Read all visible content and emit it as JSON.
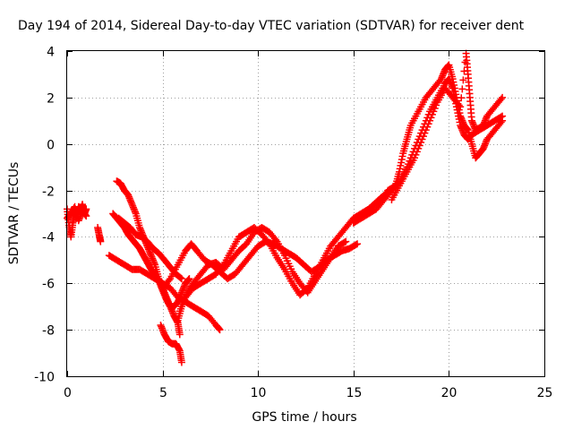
{
  "chart_data": {
    "type": "scatter",
    "title": "Day 194 of 2014, Sidereal Day-to-day VTEC variation (SDTVAR) for receiver dent",
    "xlabel": "GPS time / hours",
    "ylabel": "SDTVAR / TECUs",
    "xlim": [
      0,
      25
    ],
    "ylim": [
      -10,
      4
    ],
    "xticks": [
      0,
      5,
      10,
      15,
      20,
      25
    ],
    "yticks": [
      -10,
      -8,
      -6,
      -4,
      -2,
      0,
      2,
      4
    ],
    "grid": true,
    "marker": "+",
    "color": "#ff0000",
    "series": [
      {
        "points": [
          [
            0.0,
            -2.8
          ],
          [
            0.1,
            -3.5
          ],
          [
            0.2,
            -4.0
          ],
          [
            0.3,
            -3.4
          ],
          [
            0.4,
            -3.0
          ],
          [
            0.5,
            -3.2
          ],
          [
            0.6,
            -2.7
          ],
          [
            0.7,
            -2.9
          ],
          [
            0.8,
            -2.6
          ],
          [
            0.9,
            -3.0
          ],
          [
            1.0,
            -2.8
          ]
        ]
      },
      {
        "points": [
          [
            0.0,
            -3.2
          ],
          [
            0.2,
            -3.0
          ],
          [
            0.4,
            -2.7
          ],
          [
            0.6,
            -3.3
          ],
          [
            0.8,
            -2.9
          ],
          [
            1.0,
            -3.1
          ]
        ]
      },
      {
        "points": [
          [
            1.6,
            -3.6
          ],
          [
            1.7,
            -4.0
          ],
          [
            1.75,
            -4.2
          ]
        ]
      },
      {
        "points": [
          [
            2.6,
            -1.6
          ],
          [
            2.8,
            -1.7
          ],
          [
            3.0,
            -2.0
          ],
          [
            3.2,
            -2.2
          ],
          [
            3.4,
            -2.6
          ],
          [
            3.6,
            -3.0
          ],
          [
            3.8,
            -3.6
          ],
          [
            4.0,
            -4.0
          ],
          [
            4.2,
            -4.4
          ],
          [
            4.4,
            -4.8
          ],
          [
            4.6,
            -5.2
          ],
          [
            4.8,
            -5.8
          ],
          [
            5.0,
            -6.2
          ],
          [
            5.2,
            -6.6
          ],
          [
            5.4,
            -7.0
          ],
          [
            5.6,
            -7.4
          ],
          [
            5.8,
            -7.7
          ],
          [
            5.9,
            -8.2
          ]
        ]
      },
      {
        "points": [
          [
            2.4,
            -3.0
          ],
          [
            2.6,
            -3.2
          ],
          [
            2.8,
            -3.4
          ],
          [
            3.0,
            -3.6
          ],
          [
            3.2,
            -3.9
          ],
          [
            3.4,
            -4.1
          ],
          [
            3.6,
            -4.3
          ],
          [
            3.8,
            -4.5
          ],
          [
            4.0,
            -4.8
          ],
          [
            4.2,
            -5.1
          ],
          [
            4.4,
            -5.4
          ],
          [
            4.6,
            -5.6
          ],
          [
            4.8,
            -5.9
          ],
          [
            5.0,
            -6.3
          ],
          [
            5.2,
            -6.7
          ],
          [
            5.4,
            -7.0
          ],
          [
            5.6,
            -7.0
          ],
          [
            5.8,
            -6.8
          ],
          [
            6.0,
            -6.4
          ],
          [
            6.2,
            -6.0
          ],
          [
            6.4,
            -5.8
          ]
        ]
      },
      {
        "points": [
          [
            2.2,
            -4.8
          ],
          [
            2.6,
            -5.0
          ],
          [
            3.0,
            -5.2
          ],
          [
            3.4,
            -5.4
          ],
          [
            3.8,
            -5.4
          ],
          [
            4.2,
            -5.6
          ],
          [
            4.6,
            -5.8
          ],
          [
            5.0,
            -6.0
          ],
          [
            5.4,
            -6.2
          ],
          [
            5.8,
            -6.6
          ],
          [
            6.2,
            -6.8
          ],
          [
            6.6,
            -7.0
          ],
          [
            7.0,
            -7.2
          ],
          [
            7.4,
            -7.4
          ],
          [
            7.8,
            -7.8
          ],
          [
            8.0,
            -8.0
          ]
        ]
      },
      {
        "points": [
          [
            2.7,
            -3.2
          ],
          [
            3.0,
            -3.4
          ],
          [
            3.3,
            -3.6
          ],
          [
            3.6,
            -3.9
          ],
          [
            3.9,
            -4.0
          ],
          [
            4.2,
            -4.2
          ],
          [
            4.5,
            -4.5
          ],
          [
            4.8,
            -4.7
          ],
          [
            5.1,
            -5.0
          ],
          [
            5.4,
            -5.3
          ],
          [
            5.7,
            -5.6
          ],
          [
            6.0,
            -5.8
          ]
        ]
      },
      {
        "points": [
          [
            4.9,
            -7.8
          ],
          [
            5.1,
            -8.2
          ],
          [
            5.3,
            -8.5
          ],
          [
            5.5,
            -8.6
          ],
          [
            5.7,
            -8.6
          ],
          [
            5.9,
            -8.9
          ],
          [
            6.0,
            -9.4
          ]
        ]
      },
      {
        "points": [
          [
            5.0,
            -6.2
          ],
          [
            5.4,
            -5.8
          ],
          [
            5.8,
            -5.2
          ],
          [
            6.2,
            -4.6
          ],
          [
            6.5,
            -4.3
          ],
          [
            6.8,
            -4.6
          ],
          [
            7.2,
            -5.0
          ],
          [
            7.6,
            -5.2
          ],
          [
            8.0,
            -5.5
          ],
          [
            8.4,
            -5.8
          ],
          [
            8.8,
            -5.6
          ],
          [
            9.2,
            -5.2
          ],
          [
            9.6,
            -4.8
          ],
          [
            10.0,
            -4.4
          ],
          [
            10.4,
            -4.2
          ],
          [
            10.8,
            -4.3
          ],
          [
            11.2,
            -4.5
          ],
          [
            11.6,
            -4.7
          ],
          [
            12.0,
            -4.9
          ],
          [
            12.4,
            -5.2
          ],
          [
            12.8,
            -5.5
          ],
          [
            13.2,
            -5.3
          ],
          [
            13.6,
            -5.0
          ],
          [
            14.0,
            -4.8
          ],
          [
            14.4,
            -4.6
          ],
          [
            14.8,
            -4.5
          ],
          [
            15.2,
            -4.3
          ]
        ]
      },
      {
        "points": [
          [
            5.8,
            -7.6
          ],
          [
            6.0,
            -7.0
          ],
          [
            6.3,
            -6.4
          ],
          [
            6.6,
            -6.0
          ],
          [
            7.0,
            -5.6
          ],
          [
            7.4,
            -5.2
          ],
          [
            7.8,
            -5.1
          ],
          [
            8.2,
            -5.4
          ],
          [
            8.6,
            -5.0
          ],
          [
            9.0,
            -4.6
          ],
          [
            9.4,
            -4.3
          ],
          [
            9.8,
            -3.8
          ],
          [
            10.2,
            -3.6
          ],
          [
            10.6,
            -3.8
          ],
          [
            11.0,
            -4.2
          ],
          [
            11.4,
            -4.8
          ],
          [
            11.8,
            -5.5
          ],
          [
            12.2,
            -6.0
          ],
          [
            12.6,
            -6.4
          ],
          [
            13.0,
            -5.9
          ],
          [
            13.4,
            -5.4
          ],
          [
            13.8,
            -4.9
          ],
          [
            14.2,
            -4.4
          ],
          [
            14.6,
            -4.2
          ]
        ]
      },
      {
        "points": [
          [
            5.9,
            -7.2
          ],
          [
            6.2,
            -6.6
          ],
          [
            6.6,
            -6.2
          ],
          [
            7.0,
            -6.0
          ],
          [
            7.4,
            -5.8
          ],
          [
            7.8,
            -5.6
          ],
          [
            8.2,
            -5.2
          ],
          [
            8.6,
            -4.6
          ],
          [
            9.0,
            -4.0
          ],
          [
            9.4,
            -3.8
          ],
          [
            9.8,
            -3.6
          ],
          [
            10.2,
            -3.9
          ],
          [
            10.6,
            -4.3
          ],
          [
            11.0,
            -4.9
          ],
          [
            11.4,
            -5.4
          ],
          [
            11.8,
            -6.0
          ],
          [
            12.2,
            -6.5
          ],
          [
            12.6,
            -6.2
          ],
          [
            13.0,
            -5.6
          ],
          [
            13.4,
            -5.0
          ],
          [
            13.8,
            -4.4
          ],
          [
            14.2,
            -4.0
          ],
          [
            14.6,
            -3.6
          ],
          [
            15.0,
            -3.2
          ],
          [
            15.4,
            -3.0
          ],
          [
            15.8,
            -2.8
          ],
          [
            16.2,
            -2.5
          ],
          [
            16.6,
            -2.2
          ],
          [
            17.0,
            -2.0
          ]
        ]
      },
      {
        "points": [
          [
            15.0,
            -3.4
          ],
          [
            15.4,
            -3.2
          ],
          [
            15.8,
            -3.0
          ],
          [
            16.2,
            -2.8
          ],
          [
            16.6,
            -2.4
          ],
          [
            17.0,
            -2.0
          ],
          [
            17.4,
            -1.6
          ],
          [
            17.8,
            -1.0
          ],
          [
            18.2,
            -0.2
          ],
          [
            18.6,
            0.6
          ],
          [
            19.0,
            1.4
          ],
          [
            19.4,
            2.0
          ],
          [
            19.8,
            2.6
          ],
          [
            20.0,
            2.8
          ],
          [
            20.2,
            2.4
          ],
          [
            20.4,
            1.6
          ],
          [
            20.6,
            0.8
          ],
          [
            20.8,
            0.4
          ],
          [
            21.0,
            0.2
          ],
          [
            21.2,
            0.4
          ],
          [
            21.6,
            0.6
          ],
          [
            22.0,
            0.8
          ],
          [
            22.4,
            1.0
          ],
          [
            22.8,
            1.2
          ]
        ]
      },
      {
        "points": [
          [
            16.8,
            -2.0
          ],
          [
            17.2,
            -1.8
          ],
          [
            17.4,
            -1.2
          ],
          [
            17.6,
            -0.4
          ],
          [
            17.8,
            0.2
          ],
          [
            18.0,
            0.8
          ],
          [
            18.4,
            1.4
          ],
          [
            18.8,
            2.0
          ],
          [
            19.2,
            2.4
          ],
          [
            19.6,
            2.8
          ],
          [
            19.8,
            3.2
          ],
          [
            20.0,
            3.4
          ],
          [
            20.2,
            2.8
          ],
          [
            20.4,
            2.0
          ],
          [
            20.6,
            1.2
          ],
          [
            20.8,
            0.8
          ],
          [
            21.0,
            0.6
          ],
          [
            21.2,
            0.0
          ],
          [
            21.4,
            -0.6
          ],
          [
            21.6,
            -0.4
          ],
          [
            21.8,
            -0.2
          ],
          [
            22.0,
            0.2
          ],
          [
            22.4,
            0.6
          ],
          [
            22.8,
            1.0
          ]
        ]
      },
      {
        "points": [
          [
            17.0,
            -2.4
          ],
          [
            17.4,
            -1.8
          ],
          [
            17.8,
            -1.2
          ],
          [
            18.2,
            -0.6
          ],
          [
            18.6,
            0.2
          ],
          [
            19.0,
            1.0
          ],
          [
            19.4,
            1.8
          ],
          [
            19.8,
            2.4
          ],
          [
            20.2,
            2.0
          ],
          [
            20.6,
            1.6
          ],
          [
            20.9,
            3.9
          ],
          [
            21.0,
            3.0
          ],
          [
            21.1,
            2.0
          ],
          [
            21.2,
            1.0
          ],
          [
            21.4,
            0.6
          ],
          [
            21.8,
            0.8
          ],
          [
            22.0,
            1.2
          ],
          [
            22.4,
            1.6
          ],
          [
            22.8,
            2.0
          ]
        ]
      }
    ]
  }
}
